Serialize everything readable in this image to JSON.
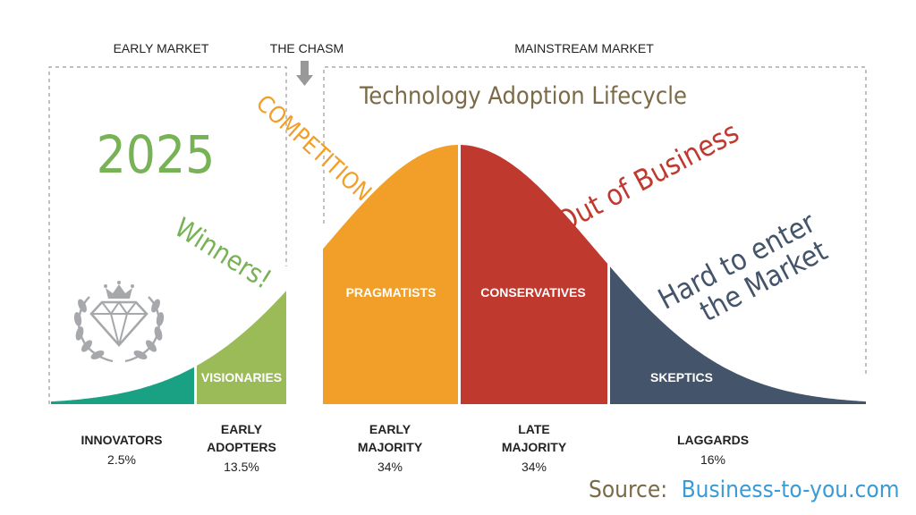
{
  "headers": {
    "early_market": "EARLY MARKET",
    "chasm": "THE CHASM",
    "mainstream_market": "MAINSTREAM MARKET"
  },
  "title": "Technology Adoption Lifecycle",
  "year": "2025",
  "annotations": {
    "competition": "COMPETITION",
    "winners": "Winners!",
    "out_of_business": "Out of Business",
    "hard_line1": "Hard to enter",
    "hard_line2": "the Market"
  },
  "segments": [
    {
      "inside_label": "",
      "category_lines": [
        "INNOVATORS"
      ],
      "percent": "2.5%",
      "color": "#1aa184"
    },
    {
      "inside_label": "VISIONARIES",
      "category_lines": [
        "EARLY",
        "ADOPTERS"
      ],
      "percent": "13.5%",
      "color": "#9bbb59"
    },
    {
      "inside_label": "PRAGMATISTS",
      "category_lines": [
        "EARLY",
        "MAJORITY"
      ],
      "percent": "34%",
      "color": "#f19f29"
    },
    {
      "inside_label": "CONSERVATIVES",
      "category_lines": [
        "LATE",
        "MAJORITY"
      ],
      "percent": "34%",
      "color": "#c0392f"
    },
    {
      "inside_label": "SKEPTICS",
      "category_lines": [
        "LAGGARDS"
      ],
      "percent": "16%",
      "color": "#44546a"
    }
  ],
  "source": {
    "label": "Source:",
    "site": "Business-to-you.com"
  },
  "colors": {
    "title": "#7b6a48",
    "year": "#77b256",
    "competition": "#f19f29",
    "winners": "#77b256",
    "out_of_business": "#c0392f",
    "hard": "#44546a",
    "source_label": "#7b6a48",
    "source_site": "#3b9bd6",
    "dash": "#999999",
    "arrow": "#999999",
    "emblem": "#a6a8ab"
  },
  "icons": {
    "emblem": "crown-diamond-laurel-icon",
    "chasm_arrow": "arrow-down-icon"
  }
}
